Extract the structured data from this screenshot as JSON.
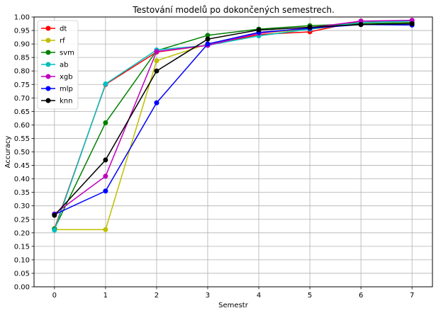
{
  "chart_data": {
    "type": "line",
    "title": "Testování modelů po dokončených semestrech.",
    "xlabel": "Semestr",
    "ylabel": "Accuracy",
    "x": [
      0,
      1,
      2,
      3,
      4,
      5,
      6,
      7
    ],
    "xlim": [
      -0.4,
      7.4
    ],
    "ylim": [
      0,
      1
    ],
    "x_ticks": [
      0,
      1,
      2,
      3,
      4,
      5,
      6,
      7
    ],
    "y_ticks": [
      0.0,
      0.05,
      0.1,
      0.15,
      0.2,
      0.25,
      0.3,
      0.35,
      0.4,
      0.45,
      0.5,
      0.55,
      0.6,
      0.65,
      0.7,
      0.75,
      0.8,
      0.85,
      0.9,
      0.95,
      1.0
    ],
    "grid": true,
    "legend_position": "top-left",
    "series": [
      {
        "name": "dt",
        "color": "#ff0000",
        "values": [
          0.215,
          0.75,
          0.87,
          0.895,
          0.935,
          0.945,
          0.985,
          0.985
        ]
      },
      {
        "name": "rf",
        "color": "#bfbf00",
        "values": [
          0.212,
          0.212,
          0.838,
          0.9,
          0.94,
          0.955,
          0.975,
          0.975
        ]
      },
      {
        "name": "svm",
        "color": "#008000",
        "values": [
          0.215,
          0.608,
          0.875,
          0.932,
          0.955,
          0.968,
          0.975,
          0.98
        ]
      },
      {
        "name": "ab",
        "color": "#00bfbf",
        "values": [
          0.21,
          0.752,
          0.878,
          0.895,
          0.93,
          0.955,
          0.98,
          0.985
        ]
      },
      {
        "name": "xgb",
        "color": "#bf00bf",
        "values": [
          0.27,
          0.41,
          0.872,
          0.895,
          0.94,
          0.96,
          0.985,
          0.988
        ]
      },
      {
        "name": "mlp",
        "color": "#0000ff",
        "values": [
          0.268,
          0.355,
          0.682,
          0.9,
          0.943,
          0.958,
          0.972,
          0.97
        ]
      },
      {
        "name": "knn",
        "color": "#000000",
        "values": [
          0.265,
          0.47,
          0.8,
          0.918,
          0.952,
          0.962,
          0.972,
          0.975
        ]
      }
    ]
  }
}
